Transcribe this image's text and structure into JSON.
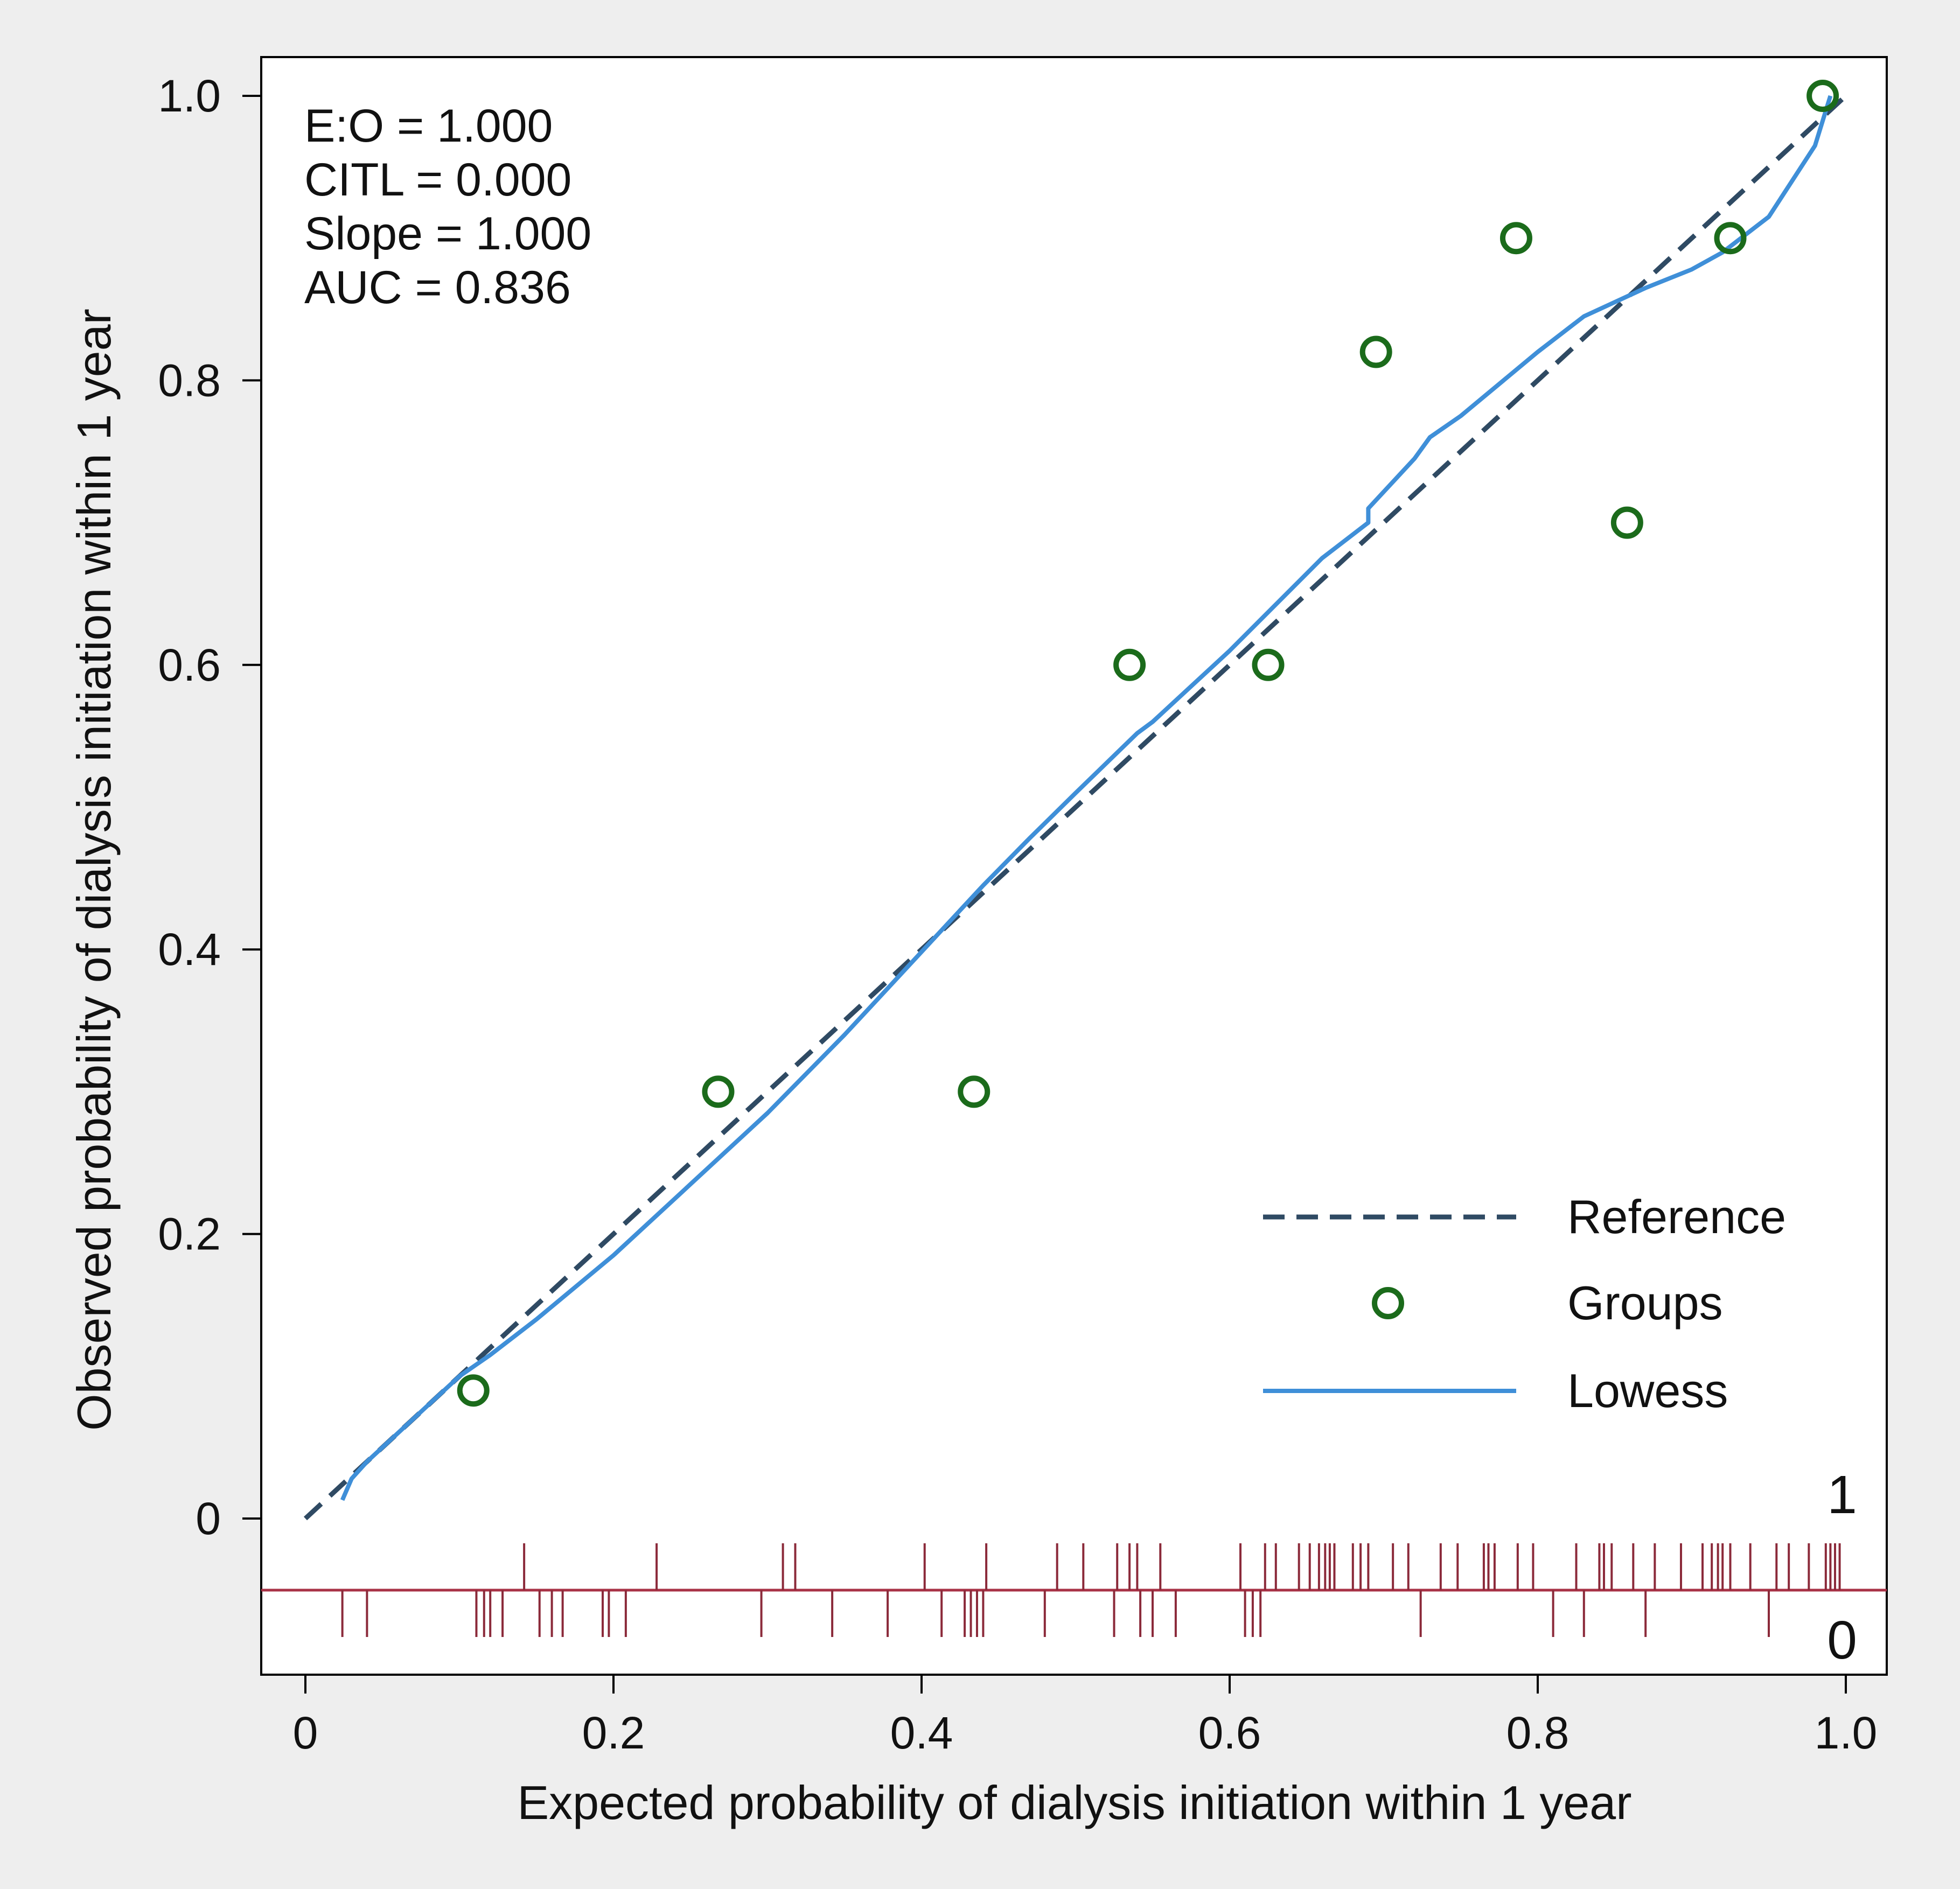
{
  "chart_data": {
    "type": "scatter",
    "xlabel": "Expected probability of dialysis initiation within 1 year",
    "ylabel": "Observed probability of dialysis initiation within 1 year",
    "xlim": [
      0,
      1
    ],
    "ylim": [
      0,
      1
    ],
    "x_ticks": [
      "0",
      "0.2",
      "0.4",
      "0.6",
      "0.8",
      "1.0"
    ],
    "y_ticks": [
      "0",
      "0.2",
      "0.4",
      "0.6",
      "0.8",
      "1.0"
    ],
    "grid": false,
    "legend_position": "bottom-right",
    "stats": [
      "E:O = 1.000",
      "CITL = 0.000",
      "Slope = 1.000",
      "AUC = 0.836"
    ],
    "series": [
      {
        "name": "Reference",
        "style": "dashed",
        "color": "#2f4a63",
        "x": [
          0,
          1
        ],
        "y": [
          0,
          1
        ]
      },
      {
        "name": "Groups",
        "style": "hollow-circle",
        "color": "#1b6b1b",
        "x": [
          0.109,
          0.268,
          0.434,
          0.535,
          0.625,
          0.695,
          0.786,
          0.858,
          0.925,
          0.985
        ],
        "y": [
          0.09,
          0.3,
          0.3,
          0.6,
          0.6,
          0.82,
          0.9,
          0.7,
          0.9,
          1.0
        ]
      },
      {
        "name": "Lowess",
        "style": "solid",
        "color": "#3f8fd8",
        "x": [
          0.024,
          0.03,
          0.04,
          0.06,
          0.08,
          0.1,
          0.12,
          0.15,
          0.2,
          0.25,
          0.3,
          0.35,
          0.38,
          0.41,
          0.44,
          0.47,
          0.5,
          0.54,
          0.55,
          0.6,
          0.66,
          0.69,
          0.69,
          0.72,
          0.73,
          0.75,
          0.8,
          0.83,
          0.87,
          0.9,
          0.92,
          0.95,
          0.98,
          0.99
        ],
        "y": [
          0.013,
          0.028,
          0.04,
          0.06,
          0.08,
          0.1,
          0.115,
          0.14,
          0.185,
          0.235,
          0.285,
          0.34,
          0.375,
          0.41,
          0.445,
          0.478,
          0.51,
          0.552,
          0.56,
          0.61,
          0.675,
          0.7,
          0.71,
          0.745,
          0.76,
          0.775,
          0.82,
          0.845,
          0.865,
          0.878,
          0.89,
          0.915,
          0.965,
          1.0
        ]
      }
    ],
    "rug": {
      "row_labels": [
        "1",
        "0"
      ],
      "events_1": [
        0.142,
        0.228,
        0.31,
        0.318,
        0.402,
        0.442,
        0.488,
        0.505,
        0.527,
        0.535,
        0.54,
        0.555,
        0.607,
        0.623,
        0.63,
        0.645,
        0.652,
        0.658,
        0.662,
        0.665,
        0.668,
        0.68,
        0.685,
        0.69,
        0.706,
        0.716,
        0.737,
        0.748,
        0.765,
        0.768,
        0.772,
        0.787,
        0.797,
        0.825,
        0.84,
        0.843,
        0.848,
        0.862,
        0.876,
        0.893,
        0.907,
        0.913,
        0.917,
        0.92,
        0.925,
        0.938,
        0.955,
        0.963,
        0.976,
        0.987,
        0.99,
        0.993,
        0.996
      ],
      "events_0": [
        0.024,
        0.04,
        0.111,
        0.116,
        0.12,
        0.128,
        0.152,
        0.16,
        0.167,
        0.193,
        0.197,
        0.208,
        0.296,
        0.342,
        0.378,
        0.413,
        0.428,
        0.432,
        0.436,
        0.44,
        0.48,
        0.525,
        0.542,
        0.55,
        0.565,
        0.61,
        0.615,
        0.62,
        0.724,
        0.81,
        0.83,
        0.87,
        0.95
      ]
    }
  }
}
